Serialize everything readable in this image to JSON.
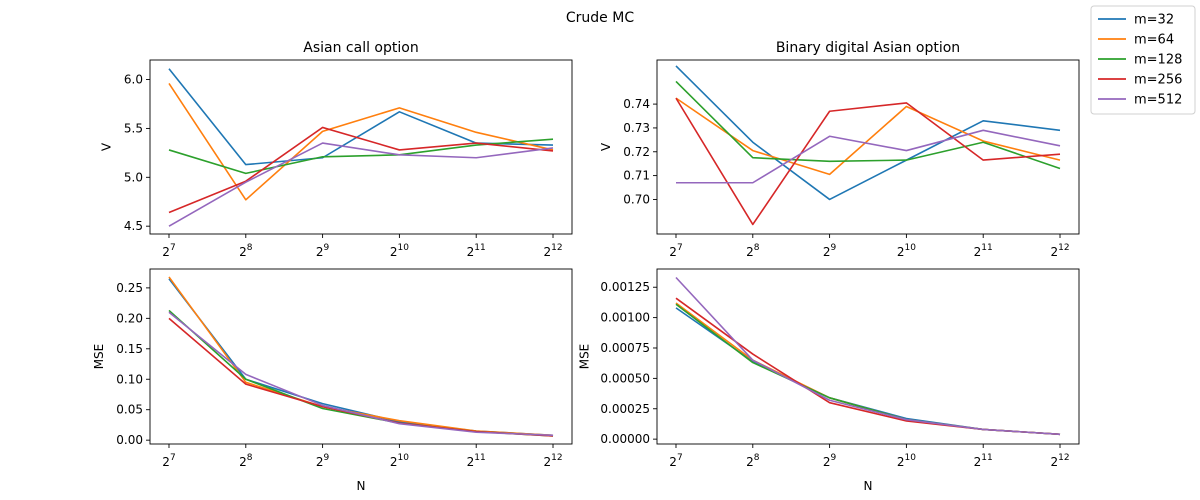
{
  "figure": {
    "suptitle": "Crude MC"
  },
  "legend": [
    {
      "label": "m=32",
      "color": "#1f77b4"
    },
    {
      "label": "m=64",
      "color": "#ff7f0e"
    },
    {
      "label": "m=128",
      "color": "#2ca02c"
    },
    {
      "label": "m=256",
      "color": "#d62728"
    },
    {
      "label": "m=512",
      "color": "#9467bd"
    }
  ],
  "chart_data": [
    {
      "type": "line",
      "title": "Asian call option",
      "xlabel": "",
      "ylabel": "V",
      "x_tick_base": "2",
      "x_tick_exponents": [
        "7",
        "8",
        "9",
        "10",
        "11",
        "12"
      ],
      "ylim": [
        4.42,
        6.2
      ],
      "yticks": [
        4.5,
        5.0,
        5.5,
        6.0
      ],
      "ytick_labels": [
        "4.5",
        "5.0",
        "5.5",
        "6.0"
      ],
      "series": [
        {
          "name": "m=32",
          "values": [
            6.11,
            5.13,
            5.2,
            5.67,
            5.35,
            5.33
          ]
        },
        {
          "name": "m=64",
          "values": [
            5.96,
            4.77,
            5.47,
            5.71,
            5.46,
            5.28
          ]
        },
        {
          "name": "m=128",
          "values": [
            5.28,
            5.04,
            5.21,
            5.23,
            5.33,
            5.39
          ]
        },
        {
          "name": "m=256",
          "values": [
            4.64,
            4.96,
            5.51,
            5.28,
            5.35,
            5.27
          ]
        },
        {
          "name": "m=512",
          "values": [
            4.5,
            4.95,
            5.35,
            5.23,
            5.2,
            5.3
          ]
        }
      ]
    },
    {
      "type": "line",
      "title": "Binary digital Asian option",
      "xlabel": "",
      "ylabel": "V",
      "x_tick_base": "2",
      "x_tick_exponents": [
        "7",
        "8",
        "9",
        "10",
        "11",
        "12"
      ],
      "ylim": [
        0.6855,
        0.7585
      ],
      "yticks": [
        0.7,
        0.71,
        0.72,
        0.73,
        0.74
      ],
      "ytick_labels": [
        "0.70",
        "0.71",
        "0.72",
        "0.73",
        "0.74"
      ],
      "series": [
        {
          "name": "m=32",
          "values": [
            0.756,
            0.724,
            0.7,
            0.7165,
            0.733,
            0.729
          ]
        },
        {
          "name": "m=64",
          "values": [
            0.7425,
            0.7205,
            0.7105,
            0.739,
            0.7245,
            0.7165
          ]
        },
        {
          "name": "m=128",
          "values": [
            0.7495,
            0.7175,
            0.716,
            0.7165,
            0.724,
            0.713
          ]
        },
        {
          "name": "m=256",
          "values": [
            0.7425,
            0.6895,
            0.737,
            0.7405,
            0.7165,
            0.719
          ]
        },
        {
          "name": "m=512",
          "values": [
            0.707,
            0.707,
            0.7265,
            0.7205,
            0.729,
            0.7225
          ]
        }
      ]
    },
    {
      "type": "line",
      "title": "",
      "xlabel": "N",
      "ylabel": "MSE",
      "x_tick_base": "2",
      "x_tick_exponents": [
        "7",
        "8",
        "9",
        "10",
        "11",
        "12"
      ],
      "ylim": [
        -0.0063,
        0.281
      ],
      "yticks": [
        0.0,
        0.05,
        0.1,
        0.15,
        0.2,
        0.25
      ],
      "ytick_labels": [
        "0.00",
        "0.05",
        "0.10",
        "0.15",
        "0.20",
        "0.25"
      ],
      "series": [
        {
          "name": "m=32",
          "values": [
            0.265,
            0.1,
            0.06,
            0.03,
            0.015,
            0.008
          ]
        },
        {
          "name": "m=64",
          "values": [
            0.268,
            0.095,
            0.055,
            0.032,
            0.015,
            0.008
          ]
        },
        {
          "name": "m=128",
          "values": [
            0.213,
            0.1,
            0.052,
            0.028,
            0.014,
            0.007
          ]
        },
        {
          "name": "m=256",
          "values": [
            0.2,
            0.092,
            0.055,
            0.028,
            0.014,
            0.007
          ]
        },
        {
          "name": "m=512",
          "values": [
            0.21,
            0.108,
            0.057,
            0.027,
            0.013,
            0.008
          ]
        }
      ]
    },
    {
      "type": "line",
      "title": "",
      "xlabel": "N",
      "ylabel": "MSE",
      "x_tick_base": "2",
      "x_tick_exponents": [
        "7",
        "8",
        "9",
        "10",
        "11",
        "12"
      ],
      "ylim": [
        -4e-05,
        0.0014
      ],
      "yticks": [
        0.0,
        0.00025,
        0.0005,
        0.00075,
        0.001,
        0.00125
      ],
      "ytick_labels": [
        "0.00000",
        "0.00025",
        "0.00050",
        "0.00075",
        "0.00100",
        "0.00125"
      ],
      "series": [
        {
          "name": "m=32",
          "values": [
            0.00108,
            0.00064,
            0.00034,
            0.00017,
            8e-05,
            4e-05
          ]
        },
        {
          "name": "m=64",
          "values": [
            0.00112,
            0.00065,
            0.00034,
            0.00016,
            8e-05,
            4e-05
          ]
        },
        {
          "name": "m=128",
          "values": [
            0.00111,
            0.00063,
            0.00034,
            0.00016,
            8e-05,
            4e-05
          ]
        },
        {
          "name": "m=256",
          "values": [
            0.00116,
            0.0007,
            0.0003,
            0.00015,
            8e-05,
            4e-05
          ]
        },
        {
          "name": "m=512",
          "values": [
            0.00133,
            0.00065,
            0.00032,
            0.00016,
            8e-05,
            4e-05
          ]
        }
      ]
    }
  ]
}
